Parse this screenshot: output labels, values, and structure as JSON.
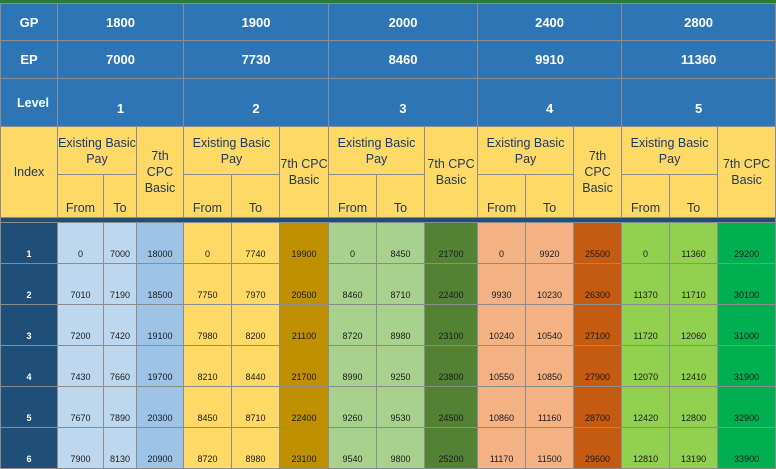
{
  "row_labels": {
    "gp": "GP",
    "ep": "EP",
    "level": "Level",
    "index": "Index"
  },
  "levels": [
    {
      "gp": "1800",
      "ep": "7000",
      "level": "1"
    },
    {
      "gp": "1900",
      "ep": "7730",
      "level": "2"
    },
    {
      "gp": "2000",
      "ep": "8460",
      "level": "3"
    },
    {
      "gp": "2400",
      "ep": "9910",
      "level": "4"
    },
    {
      "gp": "2800",
      "ep": "11360",
      "level": "5"
    }
  ],
  "headers": {
    "existing_basic_pay": [
      "Existing Basic Pay",
      "Existing Basic Pay",
      "Existing Basic Pay",
      "Existing Basic Pay",
      "Existing Basic Pay"
    ],
    "cpc_basic": "7th CPC Basic",
    "from": "From",
    "to": "To"
  },
  "colors": {
    "header_blue": "#2e75b6",
    "index_navy": "#1f4e79",
    "header_yellow": "#ffd966",
    "level1": [
      "#bdd7ee",
      "#9dc3e6"
    ],
    "level2": [
      "#ffd966",
      "#bf9000"
    ],
    "level3": [
      "#a9d18e",
      "#548235"
    ],
    "level4": [
      "#f4b183",
      "#c55a11"
    ],
    "level5": [
      "#92d050",
      "#00b050"
    ]
  },
  "rows": [
    {
      "index": "1",
      "cells": [
        "0",
        "7000",
        "18000",
        "0",
        "7740",
        "19900",
        "0",
        "8450",
        "21700",
        "0",
        "9920",
        "25500",
        "0",
        "11360",
        "29200"
      ]
    },
    {
      "index": "2",
      "cells": [
        "7010",
        "7190",
        "18500",
        "7750",
        "7970",
        "20500",
        "8460",
        "8710",
        "22400",
        "9930",
        "10230",
        "26300",
        "11370",
        "11710",
        "30100"
      ]
    },
    {
      "index": "3",
      "cells": [
        "7200",
        "7420",
        "19100",
        "7980",
        "8200",
        "21100",
        "8720",
        "8980",
        "23100",
        "10240",
        "10540",
        "27100",
        "11720",
        "12060",
        "31000"
      ]
    },
    {
      "index": "4",
      "cells": [
        "7430",
        "7660",
        "19700",
        "8210",
        "8440",
        "21700",
        "8990",
        "9250",
        "23800",
        "10550",
        "10850",
        "27900",
        "12070",
        "12410",
        "31900"
      ]
    },
    {
      "index": "5",
      "cells": [
        "7670",
        "7890",
        "20300",
        "8450",
        "8710",
        "22400",
        "9260",
        "9530",
        "24500",
        "10860",
        "11160",
        "28700",
        "12420",
        "12800",
        "32900"
      ]
    },
    {
      "index": "6",
      "cells": [
        "7900",
        "8130",
        "20900",
        "8720",
        "8980",
        "23100",
        "9540",
        "9800",
        "25200",
        "11170",
        "11500",
        "29600",
        "12810",
        "13190",
        "33900"
      ]
    }
  ]
}
